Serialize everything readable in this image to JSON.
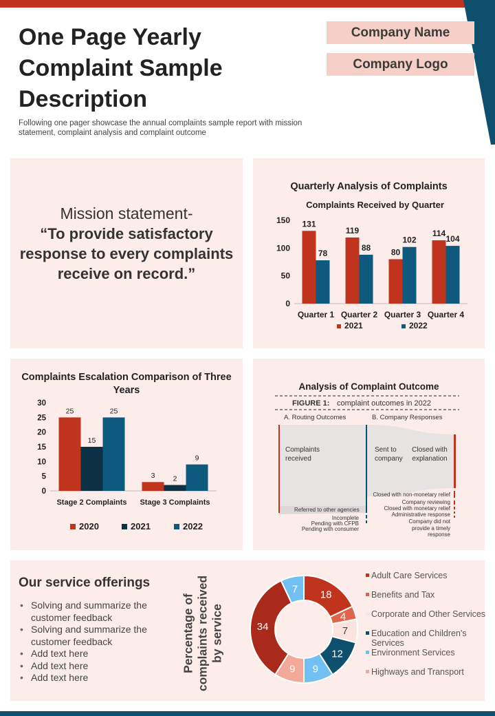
{
  "header": {
    "title": "One Page Yearly Complaint Sample Description",
    "subtitle": "Following one pager showcase the annual complaints sample report with mission statement, complaint analysis and complaint outcome",
    "company_name": "Company Name",
    "company_logo": "Company Logo"
  },
  "colors": {
    "accent_red": "#c0341d",
    "dark_navy": "#0c3044",
    "teal_blue": "#0e5a7e",
    "panel_bg": "#fcecea",
    "tag_bg": "#f6cfc6"
  },
  "mission": {
    "lead": "Mission statement-",
    "quote": "“To provide satisfactory response to every complaints receive on record.”"
  },
  "quarterly": {
    "panel_title": "Quarterly Analysis of Complaints",
    "chart_data": {
      "type": "bar",
      "title": "Complaints Received by Quarter",
      "categories": [
        "Quarter 1",
        "Quarter 2",
        "Quarter 3",
        "Quarter 4"
      ],
      "series": [
        {
          "name": "2021",
          "values": [
            131,
            119,
            80,
            114
          ],
          "color": "#c0341d"
        },
        {
          "name": "2022",
          "values": [
            78,
            88,
            102,
            104
          ],
          "color": "#0e5a7e"
        }
      ],
      "yticks": [
        0,
        50,
        100,
        150
      ],
      "ylim": [
        0,
        150
      ],
      "legend": "bottom"
    }
  },
  "escalation": {
    "chart_data": {
      "type": "bar",
      "title": "Complaints Escalation Comparison of Three Years",
      "categories": [
        "Stage 2 Complaints",
        "Stage 3 Complaints"
      ],
      "series": [
        {
          "name": "2020",
          "values": [
            25,
            3
          ],
          "color": "#c0341d"
        },
        {
          "name": "2021",
          "values": [
            15,
            2
          ],
          "color": "#0c3044"
        },
        {
          "name": "2022",
          "values": [
            25,
            9
          ],
          "color": "#0e5a7e"
        }
      ],
      "yticks": [
        0,
        5,
        10,
        15,
        20,
        25,
        30
      ],
      "ylim": [
        0,
        30
      ],
      "legend": "bottom"
    }
  },
  "outcome": {
    "title": "Analysis  of Complaint Outcome",
    "figure_label": "FIGURE   1:",
    "figure_caption": "complaint outcomes in 2022",
    "col_a": "A. Routing Outcomes",
    "col_b": "B. Company Responses",
    "complaints_received": "Complaints received",
    "sent_to_company": "Sent to company",
    "closed_with_explanation": "Closed with explanation",
    "referred": "Referred to other  agencies",
    "incomplete": "Incomplete",
    "pending_cfpb": "Pending  with CFPB",
    "pending_consumer": "Pending  with consumer",
    "closed_non_monetary": "Closed with non-monetary  relief",
    "company_reviewing": "Company  reviewing",
    "closed_monetary": "Closed with monetary relief",
    "admin_response": "Administrative  response",
    "no_timely": "Company did not provide a timely response"
  },
  "services": {
    "heading": "Our service offerings",
    "items": [
      "Solving and summarize the customer feedback",
      "Solving and summarize the customer feedback",
      "Add text here",
      "Add text here",
      "Add text here"
    ]
  },
  "donut": {
    "chart_data": {
      "type": "pie",
      "title": "Percentage of complaints received by service",
      "slices": [
        {
          "label": "Adult Care Services",
          "value": 18,
          "color": "#c0341d"
        },
        {
          "label": "Benefits and Tax",
          "value": 4,
          "color": "#e0644c"
        },
        {
          "label": "Corporate and Other Services",
          "value": 7,
          "color": "#fbe4e0"
        },
        {
          "label": "Education and Children's Services",
          "value": 12,
          "color": "#0e4f6e"
        },
        {
          "label": "Environment Services",
          "value": 9,
          "color": "#72c0f2"
        },
        {
          "label": "Highways and Transport",
          "value": 9,
          "color": "#f2a999"
        },
        {
          "label": "",
          "value": 34,
          "color": "#a92a1a"
        },
        {
          "label": "",
          "value": 7,
          "color": "#72c0f2"
        }
      ]
    }
  }
}
